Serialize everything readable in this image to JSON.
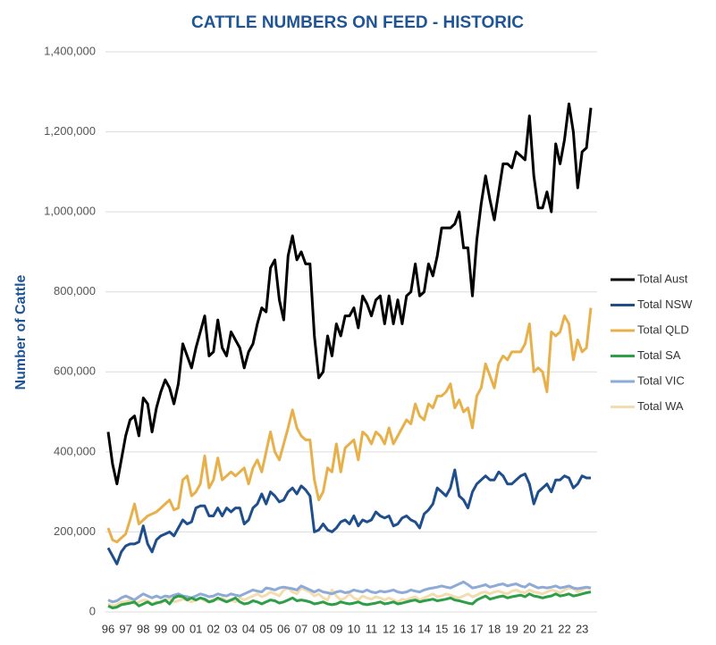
{
  "chart_data": {
    "type": "line",
    "title": "CATTLE NUMBERS ON FEED - HISTORIC",
    "y_label": "Number of Cattle",
    "categories": [
      "96",
      null,
      null,
      null,
      "97",
      null,
      null,
      null,
      "98",
      null,
      null,
      null,
      "99",
      null,
      null,
      null,
      "00",
      null,
      null,
      null,
      "01",
      null,
      null,
      null,
      "02",
      null,
      null,
      null,
      "03",
      null,
      null,
      null,
      "04",
      null,
      null,
      null,
      "05",
      null,
      null,
      null,
      "06",
      null,
      null,
      null,
      "07",
      null,
      null,
      null,
      "08",
      null,
      null,
      null,
      "09",
      null,
      null,
      null,
      "10",
      null,
      null,
      null,
      "11",
      null,
      null,
      null,
      "12",
      null,
      null,
      null,
      "13",
      null,
      null,
      null,
      "14",
      null,
      null,
      null,
      "15",
      null,
      null,
      null,
      "16",
      null,
      null,
      null,
      "17",
      null,
      null,
      null,
      "18",
      null,
      null,
      null,
      "19",
      null,
      null,
      null,
      "20",
      null,
      null,
      null,
      "21",
      null,
      null,
      null,
      "22",
      null,
      null,
      null,
      "23",
      null,
      null
    ],
    "ylim": [
      0,
      1400000
    ],
    "yticks": [
      0,
      {
        "value": 200000,
        "label": "200,000"
      },
      {
        "value": 400000,
        "label": "400,000"
      },
      {
        "value": 600000,
        "label": "600,000"
      },
      {
        "value": 800000,
        "label": "800,000"
      },
      {
        "value": 1000000,
        "label": "1,000,000"
      },
      {
        "value": 1200000,
        "label": "1,200,000"
      },
      {
        "value": 1400000,
        "label": "1,400,000"
      }
    ],
    "grid": true,
    "legend": "right",
    "series": [
      {
        "name": "Total Aust",
        "color": "#000000",
        "values": [
          450000,
          370000,
          320000,
          380000,
          440000,
          480000,
          490000,
          440000,
          535000,
          520000,
          450000,
          510000,
          550000,
          580000,
          560000,
          520000,
          570000,
          670000,
          640000,
          610000,
          660000,
          700000,
          740000,
          640000,
          650000,
          730000,
          660000,
          640000,
          700000,
          680000,
          660000,
          610000,
          650000,
          670000,
          720000,
          760000,
          750000,
          860000,
          880000,
          780000,
          730000,
          890000,
          940000,
          880000,
          900000,
          870000,
          870000,
          690000,
          585000,
          600000,
          690000,
          640000,
          720000,
          690000,
          740000,
          740000,
          760000,
          710000,
          790000,
          770000,
          740000,
          780000,
          790000,
          720000,
          790000,
          720000,
          780000,
          720000,
          790000,
          800000,
          870000,
          790000,
          800000,
          870000,
          840000,
          890000,
          960000,
          960000,
          960000,
          970000,
          1000000,
          910000,
          910000,
          790000,
          930000,
          1020000,
          1090000,
          1030000,
          980000,
          1050000,
          1120000,
          1120000,
          1110000,
          1150000,
          1140000,
          1130000,
          1240000,
          1090000,
          1010000,
          1010000,
          1050000,
          1000000,
          1170000,
          1120000,
          1180000,
          1270000,
          1200000,
          1060000,
          1150000,
          1160000,
          1260000
        ]
      },
      {
        "name": "Total NSW",
        "color": "#1f4e8c",
        "values": [
          160000,
          140000,
          120000,
          150000,
          165000,
          170000,
          170000,
          175000,
          215000,
          170000,
          150000,
          180000,
          190000,
          195000,
          200000,
          190000,
          210000,
          230000,
          220000,
          225000,
          260000,
          265000,
          265000,
          240000,
          240000,
          260000,
          240000,
          260000,
          250000,
          260000,
          260000,
          220000,
          230000,
          260000,
          270000,
          295000,
          270000,
          300000,
          290000,
          275000,
          280000,
          300000,
          310000,
          295000,
          315000,
          305000,
          290000,
          200000,
          205000,
          220000,
          205000,
          200000,
          210000,
          225000,
          230000,
          220000,
          240000,
          215000,
          230000,
          225000,
          230000,
          250000,
          240000,
          235000,
          240000,
          215000,
          220000,
          235000,
          240000,
          230000,
          225000,
          210000,
          245000,
          255000,
          270000,
          310000,
          300000,
          290000,
          310000,
          355000,
          290000,
          280000,
          260000,
          300000,
          320000,
          330000,
          340000,
          330000,
          330000,
          350000,
          340000,
          320000,
          320000,
          330000,
          340000,
          345000,
          320000,
          270000,
          300000,
          310000,
          320000,
          300000,
          330000,
          330000,
          340000,
          335000,
          310000,
          320000,
          340000,
          335000,
          335000
        ]
      },
      {
        "name": "Total QLD",
        "color": "#e8b04b",
        "values": [
          210000,
          180000,
          175000,
          185000,
          195000,
          230000,
          270000,
          220000,
          230000,
          240000,
          245000,
          250000,
          260000,
          270000,
          280000,
          255000,
          260000,
          330000,
          340000,
          290000,
          300000,
          320000,
          390000,
          310000,
          330000,
          385000,
          330000,
          340000,
          350000,
          340000,
          350000,
          360000,
          320000,
          360000,
          380000,
          350000,
          400000,
          450000,
          400000,
          380000,
          420000,
          460000,
          505000,
          460000,
          440000,
          430000,
          430000,
          330000,
          280000,
          300000,
          360000,
          350000,
          420000,
          350000,
          410000,
          420000,
          430000,
          380000,
          450000,
          440000,
          420000,
          450000,
          440000,
          420000,
          460000,
          420000,
          440000,
          460000,
          480000,
          470000,
          520000,
          490000,
          480000,
          520000,
          510000,
          540000,
          540000,
          550000,
          570000,
          510000,
          530000,
          500000,
          510000,
          460000,
          540000,
          560000,
          620000,
          590000,
          560000,
          620000,
          640000,
          630000,
          650000,
          650000,
          650000,
          670000,
          720000,
          600000,
          610000,
          600000,
          550000,
          700000,
          690000,
          700000,
          740000,
          720000,
          630000,
          680000,
          650000,
          660000,
          760000
        ]
      },
      {
        "name": "Total SA",
        "color": "#2e9e48",
        "values": [
          15000,
          10000,
          12000,
          18000,
          20000,
          22000,
          25000,
          15000,
          20000,
          25000,
          18000,
          22000,
          25000,
          30000,
          20000,
          35000,
          40000,
          38000,
          30000,
          35000,
          30000,
          35000,
          32000,
          25000,
          28000,
          35000,
          30000,
          25000,
          30000,
          35000,
          25000,
          20000,
          22000,
          28000,
          25000,
          20000,
          25000,
          30000,
          28000,
          22000,
          25000,
          30000,
          35000,
          28000,
          30000,
          28000,
          25000,
          20000,
          22000,
          25000,
          20000,
          18000,
          20000,
          25000,
          22000,
          20000,
          22000,
          25000,
          20000,
          18000,
          20000,
          22000,
          25000,
          20000,
          22000,
          25000,
          20000,
          22000,
          25000,
          28000,
          30000,
          25000,
          28000,
          30000,
          32000,
          28000,
          30000,
          32000,
          35000,
          30000,
          28000,
          25000,
          22000,
          20000,
          30000,
          35000,
          40000,
          32000,
          35000,
          38000,
          40000,
          35000,
          38000,
          40000,
          42000,
          38000,
          45000,
          40000,
          38000,
          35000,
          38000,
          40000,
          45000,
          40000,
          42000,
          45000,
          40000,
          42000,
          45000,
          48000,
          50000
        ]
      },
      {
        "name": "Total VIC",
        "color": "#8eaad6",
        "values": [
          30000,
          25000,
          28000,
          35000,
          40000,
          35000,
          30000,
          38000,
          45000,
          40000,
          35000,
          40000,
          35000,
          40000,
          38000,
          42000,
          45000,
          40000,
          38000,
          35000,
          40000,
          45000,
          42000,
          38000,
          40000,
          45000,
          42000,
          40000,
          45000,
          42000,
          40000,
          45000,
          50000,
          55000,
          52000,
          50000,
          60000,
          58000,
          55000,
          60000,
          62000,
          60000,
          58000,
          55000,
          65000,
          60000,
          55000,
          50000,
          55000,
          50000,
          48000,
          45000,
          50000,
          52000,
          48000,
          50000,
          55000,
          52000,
          50000,
          55000,
          50000,
          48000,
          52000,
          50000,
          52000,
          55000,
          50000,
          48000,
          50000,
          55000,
          52000,
          50000,
          55000,
          58000,
          60000,
          62000,
          65000,
          62000,
          60000,
          65000,
          70000,
          75000,
          68000,
          60000,
          62000,
          65000,
          68000,
          62000,
          65000,
          68000,
          70000,
          65000,
          68000,
          70000,
          65000,
          62000,
          70000,
          65000,
          60000,
          62000,
          60000,
          62000,
          65000,
          60000,
          62000,
          65000,
          60000,
          58000,
          60000,
          62000,
          60000
        ]
      },
      {
        "name": "Total WA",
        "color": "#f3dcb0",
        "values": [
          20000,
          15000,
          18000,
          25000,
          25000,
          30000,
          20000,
          25000,
          30000,
          28000,
          20000,
          25000,
          22000,
          30000,
          35000,
          25000,
          28000,
          32000,
          30000,
          25000,
          30000,
          35000,
          28000,
          25000,
          32000,
          30000,
          35000,
          28000,
          30000,
          25000,
          35000,
          30000,
          35000,
          40000,
          45000,
          38000,
          42000,
          50000,
          45000,
          40000,
          55000,
          60000,
          50000,
          45000,
          60000,
          55000,
          50000,
          40000,
          45000,
          35000,
          30000,
          55000,
          40000,
          30000,
          35000,
          45000,
          35000,
          30000,
          40000,
          35000,
          32000,
          38000,
          35000,
          30000,
          35000,
          30000,
          25000,
          32000,
          30000,
          35000,
          38000,
          30000,
          35000,
          40000,
          45000,
          38000,
          40000,
          45000,
          42000,
          38000,
          35000,
          40000,
          45000,
          38000,
          42000,
          48000,
          50000,
          45000,
          50000,
          52000,
          48000,
          45000,
          52000,
          55000,
          50000,
          48000,
          55000,
          50000,
          48000,
          45000,
          50000,
          55000,
          52000,
          48000,
          55000,
          60000,
          58000,
          50000,
          55000,
          60000,
          58000
        ]
      }
    ]
  }
}
